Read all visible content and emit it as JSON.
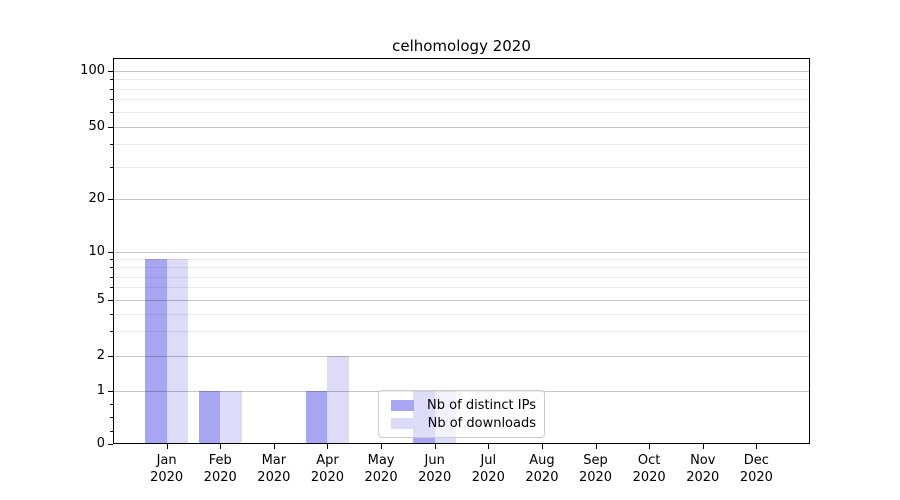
{
  "chart_data": {
    "type": "bar",
    "title": "celhomology 2020",
    "categories": [
      "Jan",
      "Feb",
      "Mar",
      "Apr",
      "May",
      "Jun",
      "Jul",
      "Aug",
      "Sep",
      "Oct",
      "Nov",
      "Dec"
    ],
    "category_year": "2020",
    "series": [
      {
        "name": "Nb of distinct IPs",
        "color": "#a6a6f2",
        "values": [
          9,
          1,
          0,
          1,
          0,
          1,
          0,
          0,
          0,
          0,
          0,
          0
        ]
      },
      {
        "name": "Nb of downloads",
        "color": "#dcdcf8",
        "values": [
          9,
          1,
          0,
          2,
          0,
          1,
          0,
          0,
          0,
          0,
          0,
          0
        ]
      }
    ],
    "xlabel": "",
    "ylabel": "",
    "yscale": "symlog",
    "ylim": [
      0,
      112
    ],
    "yticks_major": [
      0,
      1,
      2,
      5,
      10,
      20,
      50,
      100
    ],
    "yticks_minor": [
      0.25,
      0.5,
      0.75,
      3,
      4,
      6,
      7,
      8,
      9,
      30,
      40,
      60,
      70,
      80,
      90
    ],
    "ygrid_minor_values": [
      3,
      4,
      6,
      7,
      8,
      9,
      30,
      40,
      60,
      70,
      80,
      90
    ],
    "grid": "on",
    "legend_position": "lower-center"
  }
}
